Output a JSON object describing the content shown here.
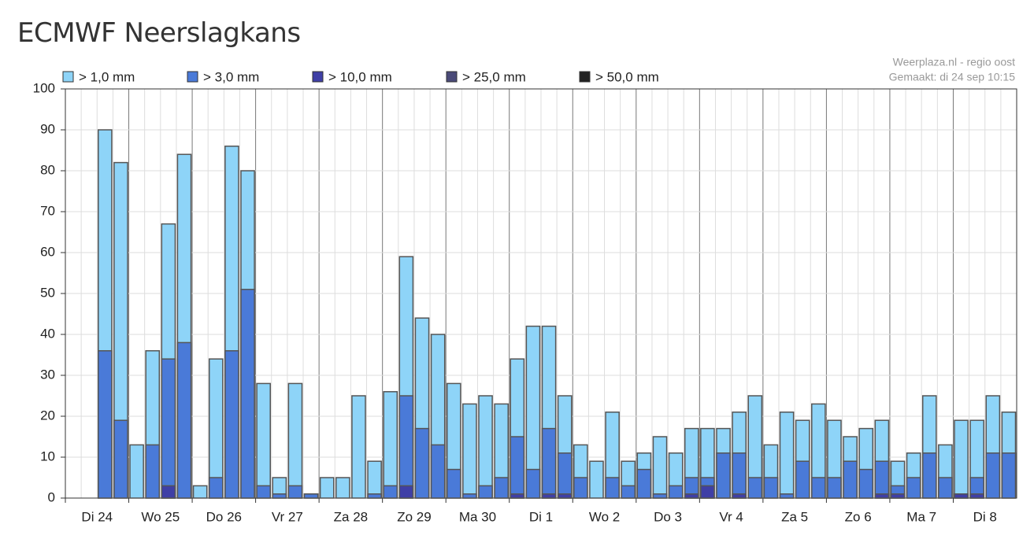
{
  "chart_data": {
    "type": "bar",
    "title": "ECMWF Neerslagkans",
    "source": "Weerplaza.nl - regio oost",
    "made": "Gemaakt: di 24 sep 10:15",
    "categories": [
      "Di 24",
      "Wo 25",
      "Do 26",
      "Vr 27",
      "Za 28",
      "Zo 29",
      "Ma 30",
      "Di 1",
      "Wo 2",
      "Do 3",
      "Vr 4",
      "Za 5",
      "Zo 6",
      "Ma 7",
      "Di 8"
    ],
    "ylim": [
      0,
      100
    ],
    "yticks": [
      0,
      10,
      20,
      30,
      40,
      50,
      60,
      70,
      80,
      90,
      100
    ],
    "grid": true,
    "series": [
      {
        "name": "> 1,0 mm",
        "color": "#8ed4f8",
        "values": [
          [
            null,
            null,
            90,
            82
          ],
          [
            13,
            36,
            67,
            84
          ],
          [
            3,
            34,
            86,
            80
          ],
          [
            28,
            5,
            28,
            1
          ],
          [
            5,
            5,
            25,
            9
          ],
          [
            26,
            59,
            44,
            40
          ],
          [
            28,
            23,
            25,
            23
          ],
          [
            34,
            42,
            42,
            25
          ],
          [
            13,
            9,
            21,
            9
          ],
          [
            11,
            15,
            11,
            17
          ],
          [
            17,
            17,
            21,
            25
          ],
          [
            13,
            21,
            19,
            23
          ],
          [
            19,
            15,
            17,
            19
          ],
          [
            9,
            11,
            25,
            13
          ],
          [
            19,
            19,
            25,
            21
          ]
        ]
      },
      {
        "name": "> 3,0 mm",
        "color": "#4a7ad8",
        "values": [
          [
            null,
            null,
            36,
            19
          ],
          [
            0,
            13,
            34,
            38
          ],
          [
            0,
            5,
            36,
            51
          ],
          [
            3,
            1,
            3,
            1
          ],
          [
            0,
            0,
            0,
            1
          ],
          [
            3,
            25,
            17,
            13
          ],
          [
            7,
            1,
            3,
            5
          ],
          [
            15,
            7,
            17,
            11
          ],
          [
            5,
            0,
            5,
            3
          ],
          [
            7,
            1,
            3,
            5
          ],
          [
            5,
            11,
            11,
            5
          ],
          [
            5,
            1,
            9,
            5
          ],
          [
            5,
            9,
            7,
            9
          ],
          [
            3,
            5,
            11,
            5
          ],
          [
            1,
            5,
            11,
            11
          ]
        ]
      },
      {
        "name": "> 10,0 mm",
        "color": "#3f3fa6",
        "values": [
          [
            null,
            null,
            0,
            0
          ],
          [
            0,
            0,
            3,
            0
          ],
          [
            0,
            0,
            0,
            0
          ],
          [
            0,
            0,
            0,
            0
          ],
          [
            0,
            0,
            0,
            0
          ],
          [
            0,
            3,
            0,
            0
          ],
          [
            0,
            0,
            0,
            0
          ],
          [
            1,
            0,
            1,
            1
          ],
          [
            0,
            0,
            0,
            0
          ],
          [
            0,
            0,
            0,
            1
          ],
          [
            3,
            0,
            1,
            0
          ],
          [
            0,
            0,
            0,
            0
          ],
          [
            0,
            0,
            0,
            1
          ],
          [
            1,
            0,
            0,
            0
          ],
          [
            1,
            1,
            0,
            0
          ]
        ]
      },
      {
        "name": "> 25,0 mm",
        "color": "#4a4a78",
        "values": [
          [
            null,
            null,
            0,
            0
          ],
          [
            0,
            0,
            0,
            0
          ],
          [
            0,
            0,
            0,
            0
          ],
          [
            0,
            0,
            0,
            0
          ],
          [
            0,
            0,
            0,
            0
          ],
          [
            0,
            0,
            0,
            0
          ],
          [
            0,
            0,
            0,
            0
          ],
          [
            0,
            0,
            0,
            0
          ],
          [
            0,
            0,
            0,
            0
          ],
          [
            0,
            0,
            0,
            0
          ],
          [
            0,
            0,
            0,
            0
          ],
          [
            0,
            0,
            0,
            0
          ],
          [
            0,
            0,
            0,
            0
          ],
          [
            0,
            0,
            0,
            0
          ],
          [
            0,
            0,
            0,
            0
          ]
        ]
      },
      {
        "name": "> 50,0 mm",
        "color": "#222222",
        "values": [
          [
            null,
            null,
            0,
            0
          ],
          [
            0,
            0,
            0,
            0
          ],
          [
            0,
            0,
            0,
            0
          ],
          [
            0,
            0,
            0,
            0
          ],
          [
            0,
            0,
            0,
            0
          ],
          [
            0,
            0,
            0,
            0
          ],
          [
            0,
            0,
            0,
            0
          ],
          [
            0,
            0,
            0,
            0
          ],
          [
            0,
            0,
            0,
            0
          ],
          [
            0,
            0,
            0,
            0
          ],
          [
            0,
            0,
            0,
            0
          ],
          [
            0,
            0,
            0,
            0
          ],
          [
            0,
            0,
            0,
            0
          ],
          [
            0,
            0,
            0,
            0
          ],
          [
            0,
            0,
            0,
            0
          ]
        ]
      }
    ]
  }
}
